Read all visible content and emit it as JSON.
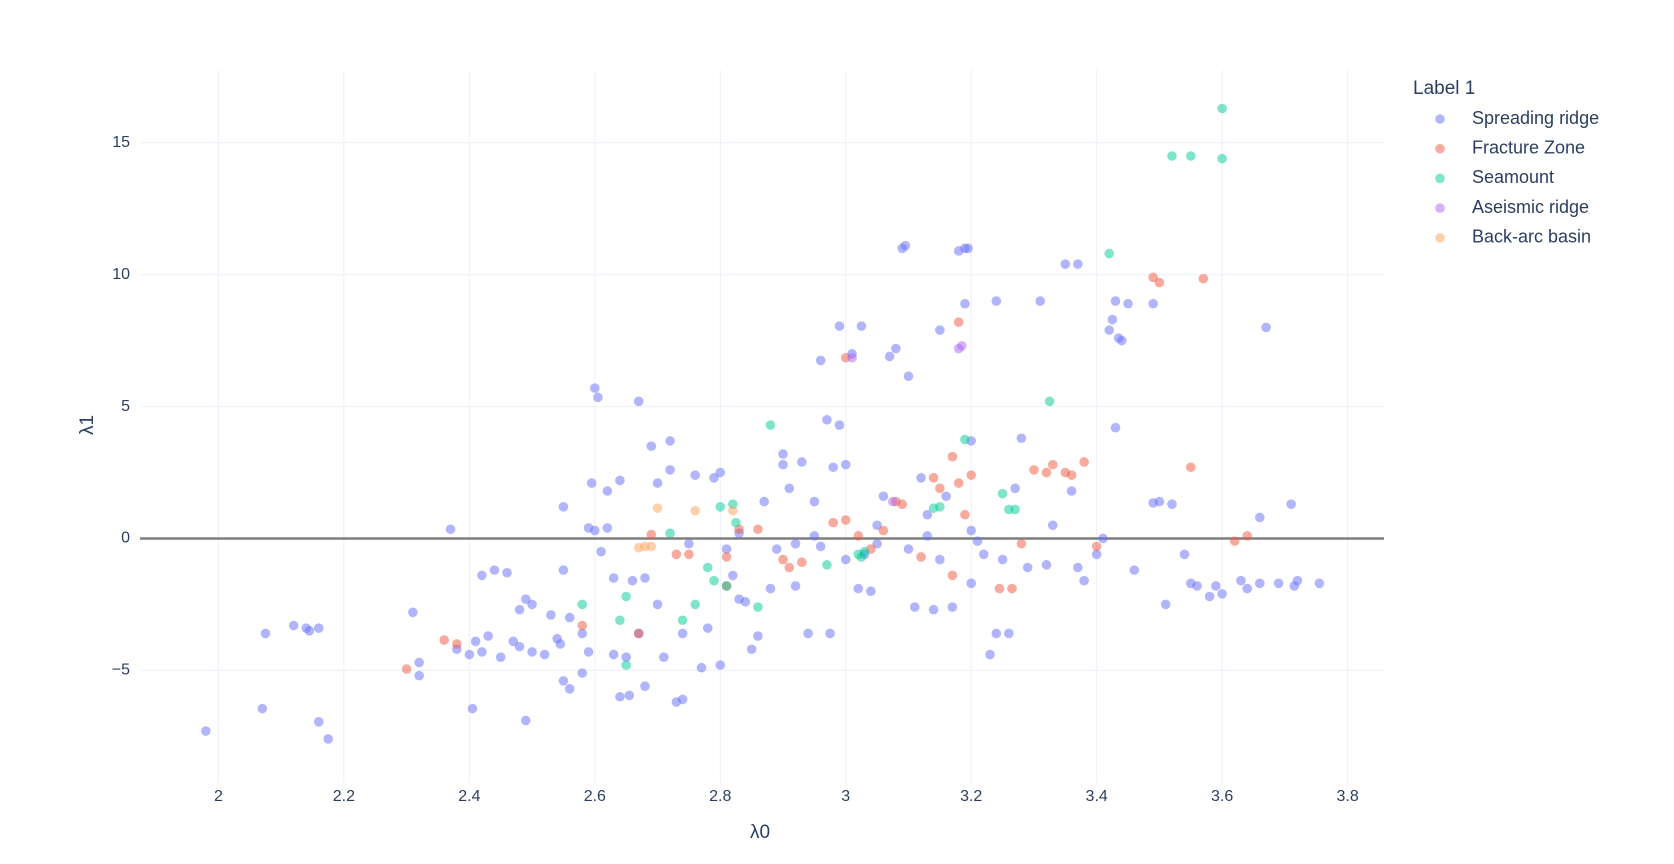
{
  "chart_data": {
    "type": "scatter",
    "x_label": "λ0",
    "y_label": "λ1",
    "legend_title": "Label 1",
    "xlim": [
      1.875,
      3.858
    ],
    "ylim": [
      -9.27,
      17.76
    ],
    "xticks": [
      2,
      2.2,
      2.4,
      2.6,
      2.8,
      3,
      3.2,
      3.4,
      3.6,
      3.8
    ],
    "yticks": [
      {
        "value": -5,
        "label": "−5"
      },
      0,
      5,
      10,
      15
    ],
    "grid": true,
    "legend": "top-right",
    "opacity": 0.5,
    "series": [
      {
        "name": "Spreading ridge",
        "color": "#636efa",
        "x": [
          1.98,
          2.07,
          2.075,
          2.12,
          2.14,
          2.145,
          2.16,
          2.16,
          2.175,
          2.31,
          2.32,
          2.32,
          2.37,
          2.38,
          2.4,
          2.405,
          2.41,
          2.42,
          2.42,
          2.43,
          2.44,
          2.45,
          2.46,
          2.47,
          2.48,
          2.48,
          2.49,
          2.49,
          2.5,
          2.5,
          2.52,
          2.53,
          2.54,
          2.545,
          2.55,
          2.55,
          2.55,
          2.56,
          2.56,
          2.58,
          2.58,
          2.59,
          2.59,
          2.595,
          2.6,
          2.605,
          2.6,
          2.61,
          2.62,
          2.62,
          2.63,
          2.63,
          2.64,
          2.64,
          2.65,
          2.655,
          2.66,
          2.67,
          2.67,
          2.68,
          2.68,
          2.69,
          2.7,
          2.7,
          2.71,
          2.72,
          2.72,
          2.73,
          2.74,
          2.74,
          2.75,
          2.76,
          2.77,
          2.78,
          2.79,
          2.8,
          2.8,
          2.81,
          2.82,
          2.83,
          2.84,
          2.85,
          2.86,
          2.87,
          2.88,
          2.89,
          2.9,
          2.9,
          2.91,
          2.92,
          2.93,
          2.94,
          2.95,
          2.96,
          2.96,
          2.97,
          2.975,
          2.98,
          2.99,
          2.99,
          3.0,
          3.01,
          3.02,
          3.025,
          3.03,
          3.04,
          3.05,
          3.06,
          3.07,
          3.08,
          3.09,
          3.095,
          3.1,
          3.1,
          3.11,
          3.12,
          3.13,
          3.14,
          3.15,
          3.15,
          3.16,
          3.17,
          3.18,
          3.19,
          3.195,
          3.19,
          3.2,
          3.2,
          3.21,
          3.22,
          3.23,
          3.24,
          3.24,
          3.25,
          3.26,
          3.27,
          3.28,
          3.29,
          3.31,
          3.32,
          3.33,
          3.35,
          3.37,
          3.36,
          3.37,
          3.38,
          3.4,
          3.41,
          3.42,
          3.425,
          3.43,
          3.435,
          3.43,
          3.44,
          3.45,
          3.46,
          3.49,
          3.49,
          3.5,
          3.51,
          3.52,
          3.54,
          3.55,
          3.56,
          3.58,
          3.59,
          3.6,
          3.63,
          3.64,
          3.66,
          3.66,
          3.67,
          3.69,
          3.71,
          3.715,
          3.72,
          3.755,
          2.83,
          2.95,
          3.05,
          3.13,
          3.2,
          2.92,
          3.0
        ],
        "values": [
          -7.3,
          -6.45,
          -3.6,
          -3.3,
          -3.4,
          -3.5,
          -3.4,
          -6.95,
          -7.6,
          -2.8,
          -4.7,
          -5.2,
          0.35,
          -4.2,
          -4.4,
          -6.45,
          -3.9,
          -4.3,
          -1.4,
          -3.7,
          -1.2,
          -4.5,
          -1.3,
          -3.9,
          -2.7,
          -4.1,
          -2.3,
          -6.9,
          -2.5,
          -4.3,
          -4.4,
          -2.9,
          -3.8,
          -4,
          -1.2,
          1.2,
          -5.4,
          -5.7,
          -3,
          -3.6,
          -5.1,
          -4.3,
          0.4,
          2.1,
          5.7,
          5.35,
          0.3,
          -0.5,
          1.8,
          0.4,
          -1.5,
          -4.4,
          2.2,
          -6,
          -4.5,
          -5.95,
          -1.6,
          5.2,
          -3.6,
          -1.5,
          -5.6,
          3.5,
          -2.5,
          2.1,
          -4.5,
          3.7,
          2.6,
          -6.2,
          -6.1,
          -3.6,
          -0.2,
          2.4,
          -4.9,
          -3.4,
          2.3,
          -4.8,
          2.5,
          -0.4,
          -1.4,
          -2.3,
          -2.4,
          -4.2,
          -3.7,
          1.4,
          -1.9,
          -0.4,
          2.8,
          3.2,
          1.9,
          -1.8,
          2.9,
          -3.6,
          1.4,
          -0.3,
          6.75,
          4.5,
          -3.6,
          2.7,
          8.05,
          4.3,
          2.8,
          7,
          -1.9,
          8.05,
          -0.6,
          -2,
          0.5,
          1.6,
          6.9,
          7.2,
          11,
          11.1,
          6.15,
          -0.4,
          -2.6,
          2.3,
          0.9,
          -2.7,
          7.9,
          -0.8,
          1.6,
          -2.6,
          10.9,
          11,
          11,
          8.9,
          3.7,
          -1.7,
          -0.1,
          -0.6,
          -4.4,
          9,
          -3.6,
          -0.8,
          -3.6,
          1.9,
          3.8,
          -1.1,
          9,
          -1,
          0.5,
          10.4,
          10.4,
          1.8,
          -1.1,
          -1.6,
          -0.6,
          0,
          7.9,
          8.3,
          9,
          7.6,
          4.2,
          7.5,
          8.9,
          -1.2,
          8.9,
          1.35,
          1.4,
          -2.5,
          1.3,
          -0.6,
          -1.7,
          -1.8,
          -2.2,
          -1.8,
          -2.1,
          -1.6,
          -1.9,
          0.8,
          -1.7,
          8,
          -1.7,
          1.3,
          -1.8,
          -1.6,
          -1.7,
          0.2,
          0.1,
          -0.2,
          0.1,
          0.3,
          -0.2,
          -0.8
        ]
      },
      {
        "name": "Fracture Zone",
        "color": "#ef553b",
        "x": [
          2.3,
          2.36,
          2.38,
          2.58,
          2.67,
          2.69,
          2.73,
          2.75,
          2.81,
          2.81,
          2.83,
          2.86,
          2.9,
          2.91,
          2.93,
          2.98,
          3.0,
          3.0,
          3.02,
          3.04,
          3.06,
          3.08,
          3.09,
          3.12,
          3.14,
          3.15,
          3.17,
          3.18,
          3.18,
          3.19,
          3.2,
          3.245,
          3.265,
          3.28,
          3.3,
          3.32,
          3.33,
          3.35,
          3.36,
          3.38,
          3.4,
          3.49,
          3.5,
          3.55,
          3.57,
          3.62,
          3.64,
          3.17
        ],
        "values": [
          -4.95,
          -3.85,
          -4,
          -3.3,
          -3.6,
          0.15,
          -0.6,
          -0.6,
          -0.7,
          -1.8,
          0.35,
          0.35,
          -0.8,
          -1.1,
          -0.9,
          0.6,
          6.85,
          0.7,
          0.1,
          -0.4,
          0.3,
          1.4,
          1.3,
          -0.7,
          2.3,
          1.9,
          3.1,
          2.1,
          8.2,
          0.9,
          2.4,
          -1.9,
          -1.9,
          -0.2,
          2.6,
          2.5,
          2.8,
          2.5,
          2.4,
          2.9,
          -0.3,
          9.9,
          9.7,
          2.7,
          9.85,
          -0.1,
          0.1,
          -1.4
        ]
      },
      {
        "name": "Seamount",
        "color": "#00cc96",
        "x": [
          2.58,
          2.64,
          2.65,
          2.65,
          2.72,
          2.74,
          2.76,
          2.78,
          2.79,
          2.8,
          2.81,
          2.82,
          2.825,
          2.86,
          2.88,
          2.97,
          3.02,
          3.025,
          3.03,
          3.14,
          3.15,
          3.19,
          3.25,
          3.26,
          3.27,
          3.325,
          3.42,
          3.52,
          3.55,
          3.6,
          3.6
        ],
        "values": [
          -2.5,
          -3.1,
          -4.8,
          -2.2,
          0.2,
          -3.1,
          -2.5,
          -1.1,
          -1.6,
          1.2,
          -1.8,
          1.3,
          0.6,
          -2.6,
          4.3,
          -1,
          -0.6,
          -0.7,
          -0.5,
          1.15,
          1.2,
          3.75,
          1.7,
          1.1,
          1.1,
          5.2,
          10.8,
          14.5,
          14.5,
          16.3,
          14.4
        ]
      },
      {
        "name": "Aseismic ridge",
        "color": "#ab63fa",
        "x": [
          3.075,
          3.18,
          3.185,
          3.01
        ],
        "values": [
          1.4,
          7.2,
          7.3,
          6.85
        ]
      },
      {
        "name": "Back-arc basin",
        "color": "#ffa15a",
        "x": [
          2.67,
          2.68,
          2.69,
          2.7,
          2.76,
          2.82
        ],
        "values": [
          -0.35,
          -0.3,
          -0.3,
          1.15,
          1.05,
          1.05
        ]
      }
    ]
  }
}
